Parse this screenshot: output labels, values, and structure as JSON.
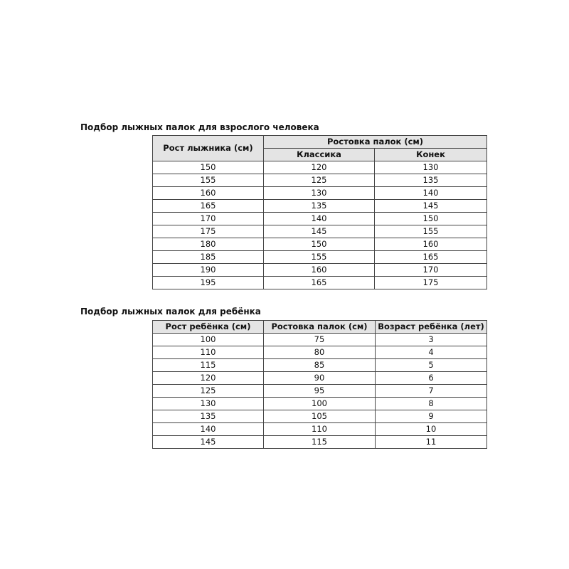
{
  "adult": {
    "title": "Подбор лыжных палок для взрослого человека",
    "headers": {
      "height": "Рост лыжника (см)",
      "poles": "Ростовка палок (см)",
      "classic": "Классика",
      "skate": "Конек"
    },
    "rows": [
      [
        "150",
        "120",
        "130"
      ],
      [
        "155",
        "125",
        "135"
      ],
      [
        "160",
        "130",
        "140"
      ],
      [
        "165",
        "135",
        "145"
      ],
      [
        "170",
        "140",
        "150"
      ],
      [
        "175",
        "145",
        "155"
      ],
      [
        "180",
        "150",
        "160"
      ],
      [
        "185",
        "155",
        "165"
      ],
      [
        "190",
        "160",
        "170"
      ],
      [
        "195",
        "165",
        "175"
      ]
    ]
  },
  "child": {
    "title": "Подбор лыжных палок для ребёнка",
    "headers": [
      "Рост ребёнка (см)",
      "Ростовка палок (см)",
      "Возраст ребёнка (лет)"
    ],
    "rows": [
      [
        "100",
        "75",
        "3"
      ],
      [
        "110",
        "80",
        "4"
      ],
      [
        "115",
        "85",
        "5"
      ],
      [
        "120",
        "90",
        "6"
      ],
      [
        "125",
        "95",
        "7"
      ],
      [
        "130",
        "100",
        "8"
      ],
      [
        "135",
        "105",
        "9"
      ],
      [
        "140",
        "110",
        "10"
      ],
      [
        "145",
        "115",
        "11"
      ]
    ]
  }
}
